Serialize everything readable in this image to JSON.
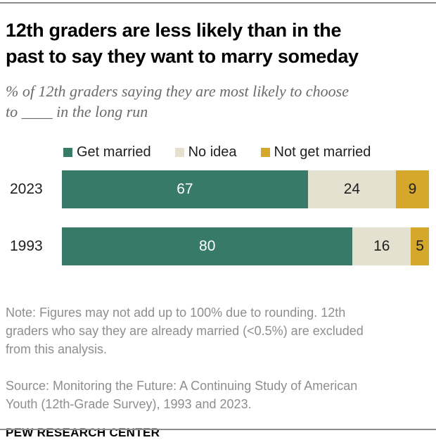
{
  "header": {
    "title": "12th graders are less likely than in the\npast to say they want to marry someday",
    "subtitle": "% of 12th graders saying they are most likely to choose\nto ____ in the long run"
  },
  "chart_data": {
    "type": "bar",
    "orientation": "horizontal",
    "stacked": true,
    "categories": [
      "2023",
      "1993"
    ],
    "series": [
      {
        "name": "Get married",
        "color": "#377a68",
        "label_color": "#ffffff",
        "values": [
          67,
          80
        ]
      },
      {
        "name": "No idea",
        "color": "#e4e1d1",
        "label_color": "#1f1f1f",
        "values": [
          24,
          16
        ]
      },
      {
        "name": "Not get married",
        "color": "#d5a72b",
        "label_color": "#1f1f1f",
        "values": [
          9,
          5
        ]
      }
    ],
    "xlim": [
      0,
      100
    ],
    "legend_position": "top",
    "value_labels": "inside",
    "grid": false
  },
  "colors": {
    "accent_green": "#377a68",
    "accent_beige": "#e4e1d1",
    "accent_gold": "#d5a72b",
    "rule_gray": "#8c8c8c",
    "subtitle_gray": "#6a6a6a",
    "note_gray": "#8e8e8e",
    "text_dark": "#1f1f1f"
  },
  "footer": {
    "note": "Note: Figures may not add up to 100% due to rounding. 12th\ngraders who say they are already married (<0.5%) are excluded\nfrom this analysis.",
    "source": "Source: Monitoring the Future: A Continuing Study of American\nYouth (12th-Grade Survey), 1993 and 2023.",
    "brand": "PEW RESEARCH CENTER"
  }
}
